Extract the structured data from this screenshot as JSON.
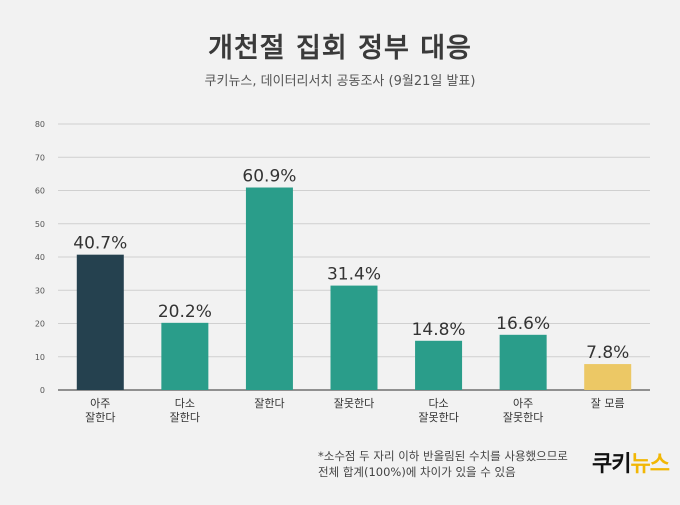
{
  "header": {
    "title": "개천절 집회 정부 대응",
    "subtitle": "쿠키뉴스, 데이터리서치 공동조사 (9월21일 발표)"
  },
  "chart_data": {
    "type": "bar",
    "categories": [
      "아주\n잘한다",
      "다소\n잘한다",
      "잘한다",
      "잘못한다",
      "다소\n잘못한다",
      "아주\n잘못한다",
      "잘 모름"
    ],
    "values": [
      40.7,
      20.2,
      60.9,
      31.4,
      14.8,
      16.6,
      7.8
    ],
    "value_labels": [
      "40.7%",
      "20.2%",
      "60.9%",
      "31.4%",
      "14.8%",
      "16.6%",
      "7.8%"
    ],
    "bar_colors": [
      "#25414f",
      "#2a9d8a",
      "#2a9d8a",
      "#2a9d8a",
      "#2a9d8a",
      "#2a9d8a",
      "#ecc865"
    ],
    "ylim": [
      0,
      80
    ],
    "yticks": [
      0,
      10,
      20,
      30,
      40,
      50,
      60,
      70,
      80
    ],
    "grid": true
  },
  "footnote": {
    "line1": "*소수점 두 자리 이하 반올림된 수치를 사용했으므로",
    "line2": "전체 합계(100%)에 차이가 있을 수 있음"
  },
  "logo": {
    "main": "쿠키",
    "accent": "뉴스",
    "accent_color": "#f2b705"
  }
}
